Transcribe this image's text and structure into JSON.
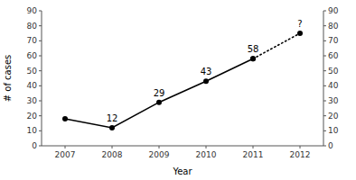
{
  "chart_data": {
    "type": "line",
    "x": [
      2007,
      2008,
      2009,
      2010,
      2011,
      2012
    ],
    "series": [
      {
        "color": "black",
        "marker": "circle",
        "line_style": "solid",
        "values": [
          18,
          12,
          29,
          43,
          58,
          null
        ]
      },
      {
        "color": "black",
        "marker": "circle",
        "line_style": "dotted",
        "values": [
          null,
          null,
          null,
          null,
          58,
          75
        ]
      }
    ],
    "annotations": [
      {
        "text": "12",
        "x": 2008,
        "y": 12
      },
      {
        "text": "29",
        "x": 2009,
        "y": 29
      },
      {
        "text": "43",
        "x": 2010,
        "y": 43
      },
      {
        "text": "58",
        "x": 2011,
        "y": 58
      },
      {
        "text": "?",
        "x": 2012,
        "y": 75
      }
    ],
    "x_label": "Year",
    "y_label": "# of cases",
    "xlim": [
      2006.5,
      2012.5
    ],
    "xticks": [
      2007,
      2008,
      2009,
      2010,
      2011,
      2012
    ],
    "ylim": [
      0,
      90
    ],
    "yticks": [
      0,
      10,
      20,
      30,
      40,
      50,
      60,
      70,
      80,
      90
    ],
    "y2lim": [
      0,
      90
    ],
    "y2ticks": [
      0,
      10,
      20,
      30,
      40,
      50,
      60,
      70,
      80,
      90
    ],
    "grid": false
  }
}
